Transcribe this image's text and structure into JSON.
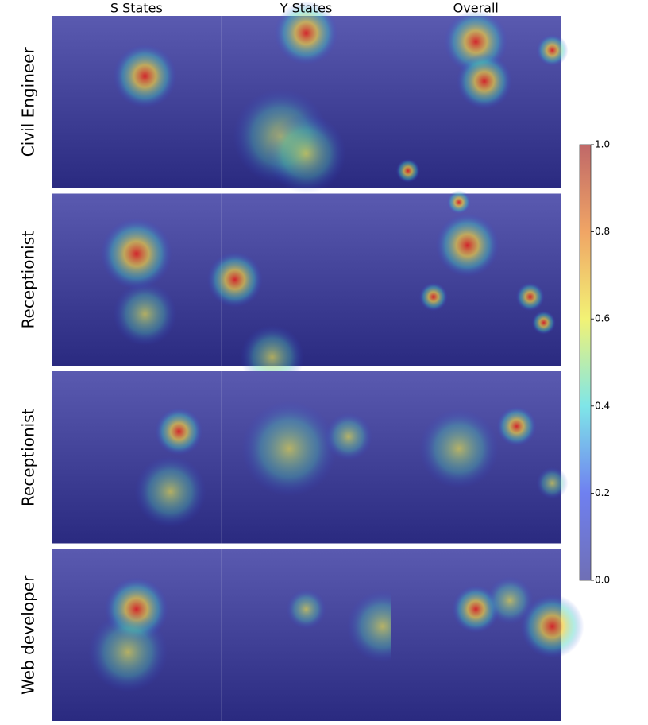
{
  "columns": [
    "S States",
    "Y States",
    "Overall"
  ],
  "rows": [
    "Civil Engineer",
    "Receptionist",
    "Receptionist",
    "Web developer"
  ],
  "colorbar": {
    "lim": [
      0,
      1
    ],
    "ticks": [
      {
        "value": 0,
        "label": "0.0"
      },
      {
        "value": 0.2,
        "label": "0.2"
      },
      {
        "value": 0.4,
        "label": "0.4"
      },
      {
        "value": 0.6,
        "label": "0.6"
      },
      {
        "value": 0.8,
        "label": "0.8"
      },
      {
        "value": 1,
        "label": "1.0"
      }
    ]
  }
}
